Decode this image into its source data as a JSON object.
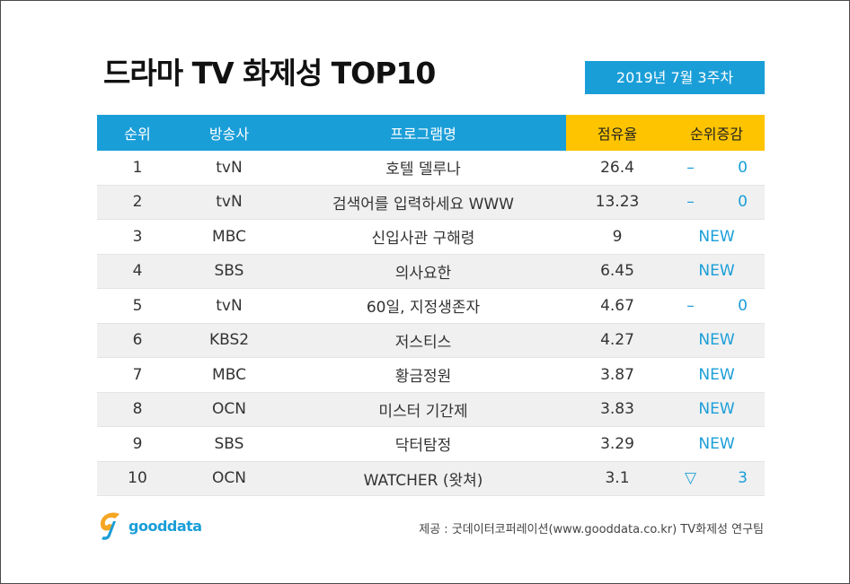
{
  "title": "드라마 TV 화제성 TOP10",
  "week": "2019년  7월 3주차",
  "headers": {
    "rank": "순위",
    "channel": "방송사",
    "program": "프로그램명",
    "share": "점유율",
    "change": "순위증감"
  },
  "rows": [
    {
      "rank": "1",
      "channel": "tvN",
      "program": "호텔 델루나",
      "share": "26.4",
      "change_symbol": "–",
      "change_value": "0"
    },
    {
      "rank": "2",
      "channel": "tvN",
      "program": "검색어를 입력하세요 WWW",
      "share": "13.23",
      "change_symbol": "–",
      "change_value": "0"
    },
    {
      "rank": "3",
      "channel": "MBC",
      "program": "신입사관 구해령",
      "share": "9",
      "change_new": "NEW"
    },
    {
      "rank": "4",
      "channel": "SBS",
      "program": "의사요한",
      "share": "6.45",
      "change_new": "NEW"
    },
    {
      "rank": "5",
      "channel": "tvN",
      "program": "60일, 지정생존자",
      "share": "4.67",
      "change_symbol": "–",
      "change_value": "0"
    },
    {
      "rank": "6",
      "channel": "KBS2",
      "program": "저스티스",
      "share": "4.27",
      "change_new": "NEW"
    },
    {
      "rank": "7",
      "channel": "MBC",
      "program": "황금정원",
      "share": "3.87",
      "change_new": "NEW"
    },
    {
      "rank": "8",
      "channel": "OCN",
      "program": "미스터 기간제",
      "share": "3.83",
      "change_new": "NEW"
    },
    {
      "rank": "9",
      "channel": "SBS",
      "program": "닥터탐정",
      "share": "3.29",
      "change_new": "NEW"
    },
    {
      "rank": "10",
      "channel": "OCN",
      "program": "WATCHER (왓쳐)",
      "share": "3.1",
      "change_symbol": "▽",
      "change_value": "3"
    }
  ],
  "logo_text": "gooddata",
  "source": "제공 : 굿데이터코퍼레이션(www.gooddata.co.kr) TV화제성 연구팀",
  "colors": {
    "header_blue": "#1a9ed8",
    "header_yellow": "#ffc400",
    "change_text": "#1a9ed8",
    "stripe": "#f0f0f0",
    "logo_orange": "#f5a623"
  },
  "icons": {
    "logo": "gooddata-logo-icon"
  }
}
